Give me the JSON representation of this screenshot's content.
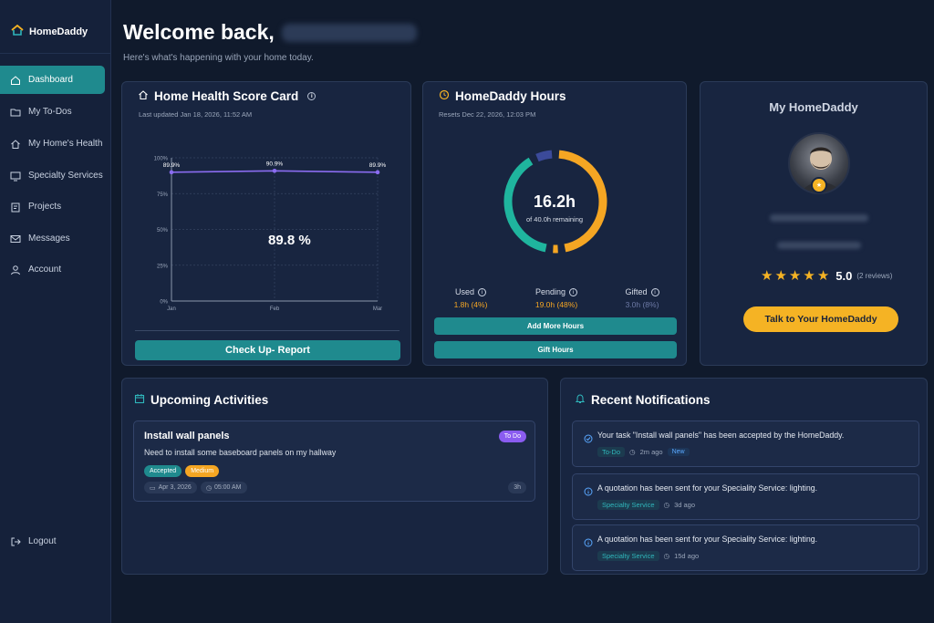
{
  "brand": {
    "name": "HomeDaddy"
  },
  "sidebar": {
    "items": [
      {
        "label": "Dashboard",
        "icon": "home-icon"
      },
      {
        "label": "My To-Dos",
        "icon": "folder-icon"
      },
      {
        "label": "My Home's Health",
        "icon": "house-icon"
      },
      {
        "label": "Specialty Services",
        "icon": "monitor-icon"
      },
      {
        "label": "Projects",
        "icon": "clipboard-icon"
      },
      {
        "label": "Messages",
        "icon": "mail-icon"
      },
      {
        "label": "Account",
        "icon": "user-icon"
      }
    ],
    "logout": "Logout"
  },
  "header": {
    "welcome": "Welcome back,",
    "subtitle": "Here's what's happening with your home today."
  },
  "health": {
    "title": "Home Health Score Card",
    "updated": "Last updated Jan 18, 2026, 11:52 AM",
    "score": "89.8 %",
    "button": "Check Up- Report"
  },
  "chart_data": {
    "type": "line",
    "categories": [
      "Jan",
      "Feb",
      "Mar"
    ],
    "values": [
      89.9,
      90.9,
      89.9
    ],
    "value_labels": [
      "89.9%",
      "90.9%",
      "89.9%"
    ],
    "ytick_labels": [
      "0%",
      "25%",
      "50%",
      "75%",
      "100%"
    ],
    "ylim": [
      0,
      100
    ],
    "grid": true,
    "colors": {
      "line": "#8a6cf0"
    }
  },
  "hours": {
    "title": "HomeDaddy Hours",
    "resets": "Resets Dec 22, 2026, 12:03 PM",
    "center_value": "16.2h",
    "center_label": "of 40.0h remaining",
    "used_label": "Used",
    "used_value": "1.8h (4%)",
    "pending_label": "Pending",
    "pending_value": "19.0h (48%)",
    "gifted_label": "Gifted",
    "gifted_value": "3.0h (8%)",
    "used_fraction": 0.04,
    "pending_fraction": 0.48,
    "gifted_fraction": 0.08,
    "remaining_fraction": 0.405,
    "add_button": "Add More Hours",
    "gift_button": "Gift Hours",
    "colors": {
      "pending": "#f5a623",
      "remaining": "#1fb59e",
      "gifted": "#3b4a9a",
      "used": "#f5a623"
    }
  },
  "my_homedaddy": {
    "title": "My HomeDaddy",
    "rating": "5.0",
    "reviews": "(2 reviews)",
    "button": "Talk to Your HomeDaddy"
  },
  "activities": {
    "title": "Upcoming Activities",
    "items": [
      {
        "title": "Install wall panels",
        "status": "To Do",
        "description": "Need to install some baseboard panels on my hallway",
        "tags": [
          "Accepted",
          "Medium"
        ],
        "date": "Apr 3, 2026",
        "time": "05:00 AM",
        "duration": "3h"
      }
    ]
  },
  "notifications": {
    "title": "Recent Notifications",
    "items": [
      {
        "text": "Your task \"Install wall panels\" has been accepted by the HomeDaddy.",
        "tag": "To-Do",
        "time": "2m ago",
        "badge": "New",
        "icon": "check-circle-icon"
      },
      {
        "text": "A quotation has been sent for your Speciality Service: lighting.",
        "tag": "Specialty Service",
        "time": "3d ago",
        "icon": "info-icon"
      },
      {
        "text": "A quotation has been sent for your Speciality Service: lighting.",
        "tag": "Specialty Service",
        "time": "15d ago",
        "icon": "info-icon"
      }
    ]
  }
}
